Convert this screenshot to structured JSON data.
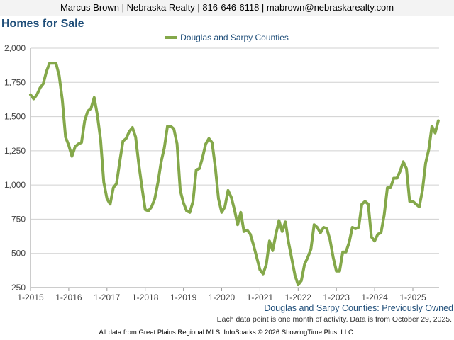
{
  "header": {
    "contact_line": "Marcus Brown | Nebraska Realty | 816-646-6118 | mabrown@nebraskarealty.com"
  },
  "page": {
    "title": "Homes for Sale"
  },
  "footer": {
    "series_label": "Douglas and Sarpy Counties: Previously Owned",
    "note": "Each data point is one month of activity. Data is from October 29, 2025.",
    "source": "All data from Great Plains Regional MLS. InfoSparks © 2026 ShowingTime Plus, LLC."
  },
  "colors": {
    "line": "#84a84a",
    "grid": "#d0d0d0",
    "title": "#1f4e79"
  },
  "chart_data": {
    "type": "line",
    "title": "",
    "xlabel": "",
    "ylabel": "",
    "grid": true,
    "legend_placement": "top-center",
    "ylim": [
      250,
      2000
    ],
    "y_ticks": [
      250,
      500,
      750,
      1000,
      1250,
      1500,
      1750,
      2000
    ],
    "y_tick_labels": [
      "250",
      "500",
      "750",
      "1,000",
      "1,250",
      "1,500",
      "1,750",
      "2,000"
    ],
    "x_ticks": [
      "1-2015",
      "1-2016",
      "1-2017",
      "1-2018",
      "1-2019",
      "1-2020",
      "1-2021",
      "1-2022",
      "1-2023",
      "1-2024",
      "1-2025"
    ],
    "x_start": "1-2015",
    "x_end": "10-2025",
    "series": [
      {
        "name": "Douglas and Sarpy Counties",
        "values": [
          1660,
          1630,
          1660,
          1710,
          1740,
          1830,
          1890,
          1890,
          1890,
          1800,
          1620,
          1350,
          1290,
          1210,
          1280,
          1300,
          1310,
          1470,
          1540,
          1560,
          1640,
          1510,
          1330,
          1020,
          900,
          860,
          980,
          1010,
          1170,
          1320,
          1340,
          1390,
          1420,
          1350,
          1150,
          980,
          820,
          810,
          840,
          900,
          1020,
          1170,
          1270,
          1430,
          1430,
          1410,
          1300,
          960,
          870,
          810,
          800,
          880,
          1110,
          1120,
          1200,
          1300,
          1340,
          1310,
          1130,
          900,
          800,
          840,
          960,
          910,
          820,
          710,
          800,
          660,
          670,
          640,
          560,
          470,
          380,
          350,
          420,
          590,
          520,
          640,
          740,
          660,
          730,
          580,
          460,
          340,
          270,
          300,
          420,
          470,
          530,
          710,
          690,
          650,
          690,
          680,
          600,
          470,
          370,
          370,
          510,
          510,
          580,
          690,
          680,
          690,
          860,
          880,
          860,
          620,
          590,
          640,
          650,
          780,
          980,
          980,
          1050,
          1050,
          1100,
          1170,
          1120,
          880,
          880,
          860,
          840,
          960,
          1160,
          1260,
          1430,
          1380,
          1470
        ]
      }
    ]
  }
}
